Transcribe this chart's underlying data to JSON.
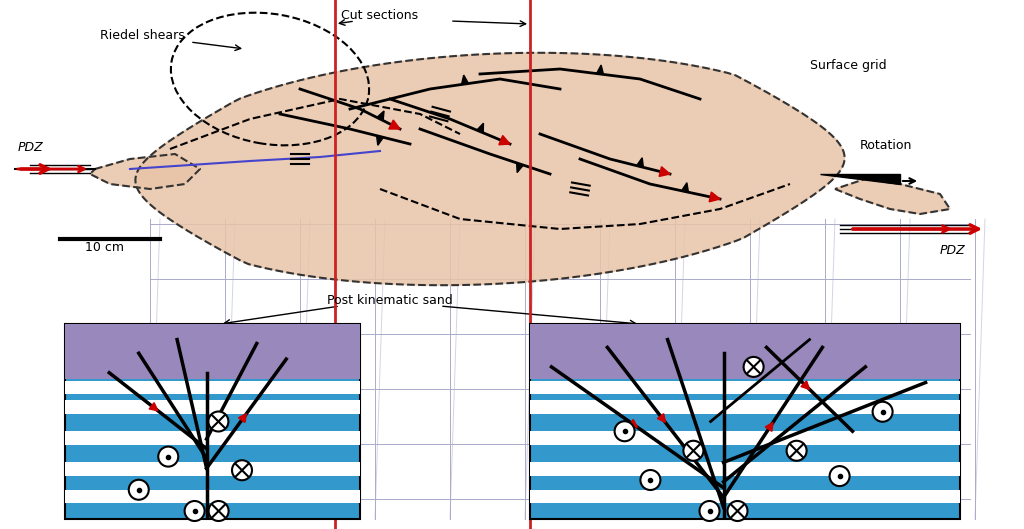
{
  "bg_color": "#ffffff",
  "popup_fill": "#e8c4a8",
  "popup_edge": "#333333",
  "grid_color": "#aaaacc",
  "red_line_color": "#cc2222",
  "blue_line_color": "#4444cc",
  "arrow_red": "#cc0000",
  "arrow_black": "#111111",
  "cross_bg_blue": "#3399cc",
  "cross_bg_purple": "#9988bb",
  "cross_white": "#ffffff",
  "label_fontsize": 9,
  "title_text": "",
  "pdz_label": "PDZ",
  "riedel_label": "Riedel shears",
  "cut_label": "Cut sections",
  "grid_label": "Surface grid",
  "rotation_label": "Rotation",
  "scale_label": "10 cm",
  "postkin_label": "Post kinematic sand"
}
